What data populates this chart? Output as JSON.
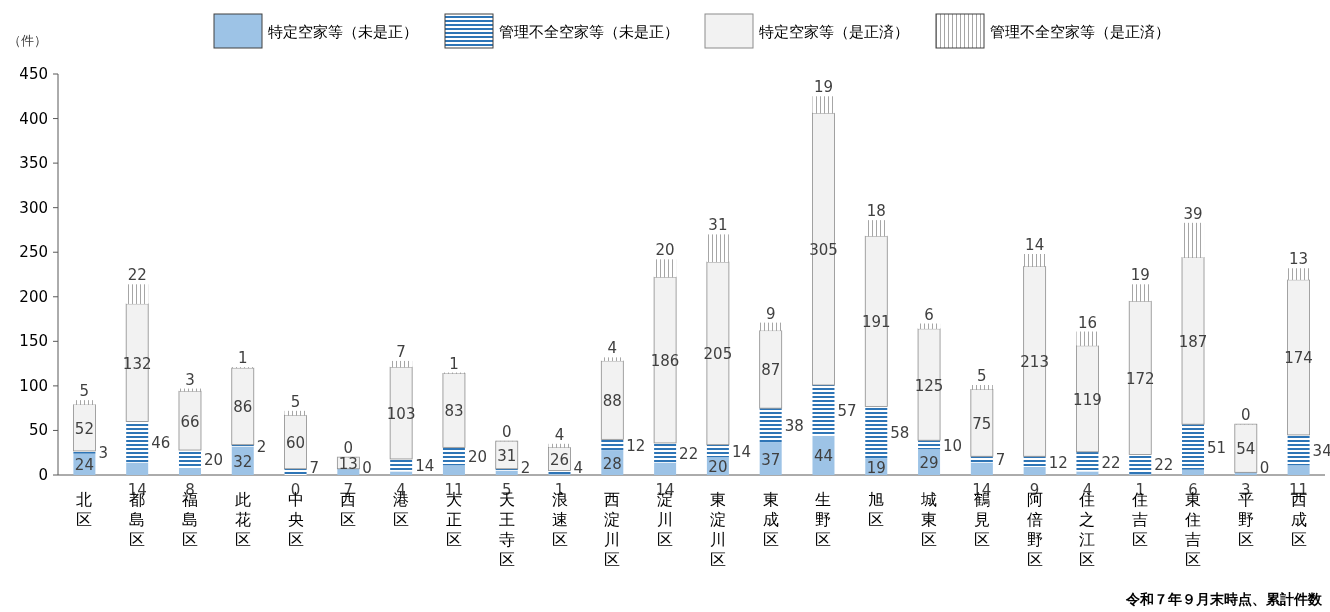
{
  "chart_data": {
    "type": "bar",
    "stacked": true,
    "ylabel": "（件）",
    "ylim": [
      0,
      450
    ],
    "yticks": [
      0,
      50,
      100,
      150,
      200,
      250,
      300,
      350,
      400,
      450
    ],
    "grid": false,
    "legend": "top",
    "data_labels": true,
    "categories": [
      "北区",
      "都島区",
      "福島区",
      "此花区",
      "中央区",
      "西区",
      "港区",
      "大正区",
      "天王寺区",
      "浪速区",
      "西淀川区",
      "淀川区",
      "東淀川区",
      "東成区",
      "生野区",
      "旭区",
      "城東区",
      "鶴見区",
      "阿倍野区",
      "住之江区",
      "住吉区",
      "東住吉区",
      "平野区",
      "西成区"
    ],
    "series": [
      {
        "name": "特定空家等（未是正）",
        "color": "#9dc3e6",
        "values": [
          24,
          14,
          8,
          32,
          0,
          7,
          4,
          11,
          5,
          1,
          28,
          14,
          20,
          37,
          44,
          19,
          29,
          14,
          9,
          4,
          1,
          6,
          3,
          11
        ]
      },
      {
        "name": "管理不全空家等（未是正）",
        "color": "#2e75b6",
        "values": [
          3,
          46,
          20,
          2,
          7,
          0,
          14,
          20,
          2,
          4,
          12,
          22,
          14,
          38,
          57,
          58,
          10,
          7,
          12,
          22,
          22,
          51,
          0,
          34
        ]
      },
      {
        "name": "特定空家等（是正済）",
        "color": "#f2f2f2",
        "values": [
          52,
          132,
          66,
          86,
          60,
          13,
          103,
          83,
          31,
          26,
          88,
          186,
          205,
          87,
          305,
          191,
          125,
          75,
          213,
          119,
          172,
          187,
          54,
          174
        ]
      },
      {
        "name": "管理不全空家等（是正済）",
        "color": "#a6a6a6",
        "values": [
          5,
          22,
          3,
          1,
          5,
          0,
          7,
          1,
          0,
          4,
          4,
          20,
          31,
          9,
          19,
          18,
          6,
          5,
          14,
          16,
          19,
          39,
          0,
          13
        ]
      }
    ],
    "annotations": [
      "令和７年９月末時点、累計件数"
    ]
  }
}
